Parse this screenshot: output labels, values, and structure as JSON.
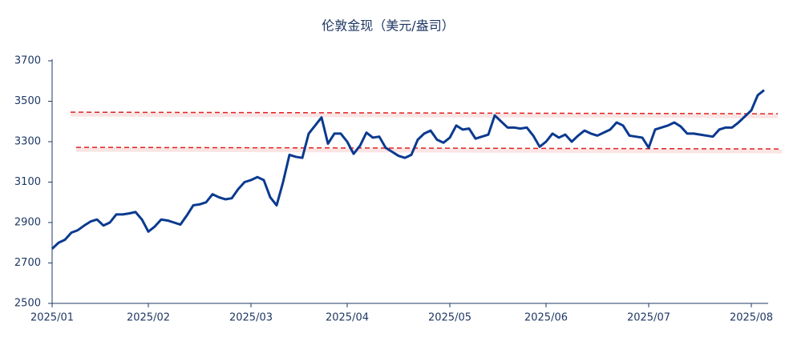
{
  "chart_data": {
    "type": "line",
    "title": "伦敦金现（美元/盎司）",
    "categories": [
      "2025/01",
      null,
      null,
      null,
      null,
      null,
      null,
      null,
      null,
      null,
      null,
      null,
      null,
      null,
      null,
      "2025/02",
      null,
      null,
      null,
      null,
      null,
      null,
      null,
      null,
      null,
      null,
      null,
      null,
      null,
      null,
      null,
      "2025/03",
      null,
      null,
      null,
      null,
      null,
      null,
      null,
      null,
      null,
      null,
      null,
      null,
      null,
      null,
      "2025/04",
      null,
      null,
      null,
      null,
      null,
      null,
      null,
      null,
      null,
      null,
      null,
      null,
      null,
      null,
      null,
      "2025/05",
      null,
      null,
      null,
      null,
      null,
      null,
      null,
      null,
      null,
      null,
      null,
      null,
      null,
      null,
      "2025/06",
      null,
      null,
      null,
      null,
      null,
      null,
      null,
      null,
      null,
      null,
      null,
      null,
      null,
      null,
      null,
      "2025/07",
      null,
      null,
      null,
      null,
      null,
      null,
      null,
      null,
      null,
      null,
      null,
      null,
      null,
      null,
      null,
      "2025/08",
      null,
      null
    ],
    "series": [
      {
        "name": "伦敦金现",
        "color": "#0b3a8f",
        "values": [
          2770,
          2800,
          2815,
          2850,
          2862,
          2885,
          2905,
          2915,
          2885,
          2900,
          2940,
          2940,
          2945,
          2952,
          2915,
          2855,
          2880,
          2915,
          2910,
          2900,
          2890,
          2935,
          2985,
          2990,
          3000,
          3040,
          3025,
          3015,
          3020,
          3065,
          3100,
          3110,
          3125,
          3110,
          3025,
          2985,
          3100,
          3235,
          3225,
          3220,
          3340,
          3380,
          3420,
          3290,
          3340,
          3340,
          3300,
          3240,
          3280,
          3345,
          3320,
          3325,
          3270,
          3250,
          3230,
          3220,
          3235,
          3310,
          3340,
          3355,
          3310,
          3295,
          3320,
          3380,
          3360,
          3365,
          3315,
          3325,
          3335,
          3430,
          3400,
          3370,
          3370,
          3365,
          3370,
          3330,
          3275,
          3300,
          3340,
          3320,
          3335,
          3300,
          3330,
          3355,
          3340,
          3330,
          3345,
          3360,
          3395,
          3380,
          3330,
          3325,
          3320,
          3270,
          3360,
          3370,
          3380,
          3395,
          3375,
          3340,
          3340,
          3335,
          3330,
          3325,
          3360,
          3370,
          3370,
          3395,
          3425,
          3455,
          3530,
          3555
        ]
      }
    ],
    "trend_lines": [
      {
        "start": 3446,
        "end": 3438,
        "color": "#e02020"
      },
      {
        "start": 3272,
        "end": 3264,
        "color": "#e02020"
      }
    ],
    "ylim": [
      2500,
      3700
    ],
    "yticks": [
      2500,
      2700,
      2900,
      3100,
      3300,
      3500,
      3700
    ]
  }
}
